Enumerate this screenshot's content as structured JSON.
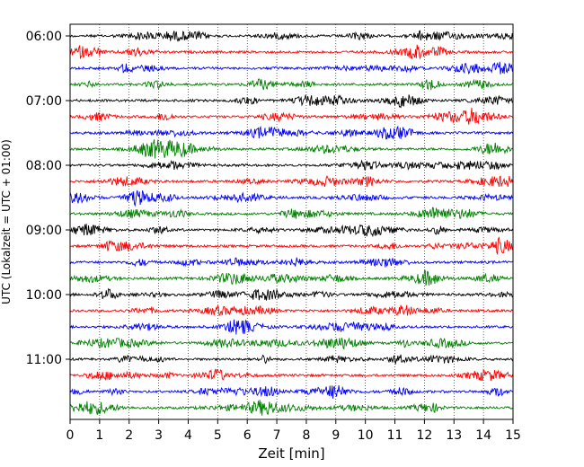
{
  "chart_data": {
    "type": "line",
    "title": "",
    "xlabel": "Zeit  [min]",
    "ylabel": "UTC (Lokalzeit = UTC + 01:00)",
    "xlim": [
      0,
      15
    ],
    "x_ticks": [
      "0",
      "1",
      "2",
      "3",
      "4",
      "5",
      "6",
      "7",
      "8",
      "9",
      "10",
      "11",
      "12",
      "13",
      "14",
      "15"
    ],
    "y_ticks": [
      "06:00",
      "07:00",
      "08:00",
      "09:00",
      "10:00",
      "11:00"
    ],
    "grid": "vertical dotted",
    "trace_interval_min": 15,
    "start_time": "06:00",
    "trace_colors": [
      "#000000",
      "#ff0000",
      "#0000ff",
      "#008000"
    ],
    "traces": [
      {
        "start": "06:00",
        "color": "#000000"
      },
      {
        "start": "06:15",
        "color": "#ff0000"
      },
      {
        "start": "06:30",
        "color": "#0000ff"
      },
      {
        "start": "06:45",
        "color": "#008000"
      },
      {
        "start": "07:00",
        "color": "#000000"
      },
      {
        "start": "07:15",
        "color": "#ff0000"
      },
      {
        "start": "07:30",
        "color": "#0000ff"
      },
      {
        "start": "07:45",
        "color": "#008000"
      },
      {
        "start": "08:00",
        "color": "#000000"
      },
      {
        "start": "08:15",
        "color": "#ff0000"
      },
      {
        "start": "08:30",
        "color": "#0000ff"
      },
      {
        "start": "08:45",
        "color": "#008000"
      },
      {
        "start": "09:00",
        "color": "#000000"
      },
      {
        "start": "09:15",
        "color": "#ff0000"
      },
      {
        "start": "09:30",
        "color": "#0000ff"
      },
      {
        "start": "09:45",
        "color": "#008000"
      },
      {
        "start": "10:00",
        "color": "#000000"
      },
      {
        "start": "10:15",
        "color": "#ff0000"
      },
      {
        "start": "10:30",
        "color": "#0000ff"
      },
      {
        "start": "10:45",
        "color": "#008000"
      },
      {
        "start": "11:00",
        "color": "#000000"
      },
      {
        "start": "11:15",
        "color": "#ff0000"
      },
      {
        "start": "11:30",
        "color": "#0000ff"
      },
      {
        "start": "11:45",
        "color": "#008000"
      }
    ]
  }
}
